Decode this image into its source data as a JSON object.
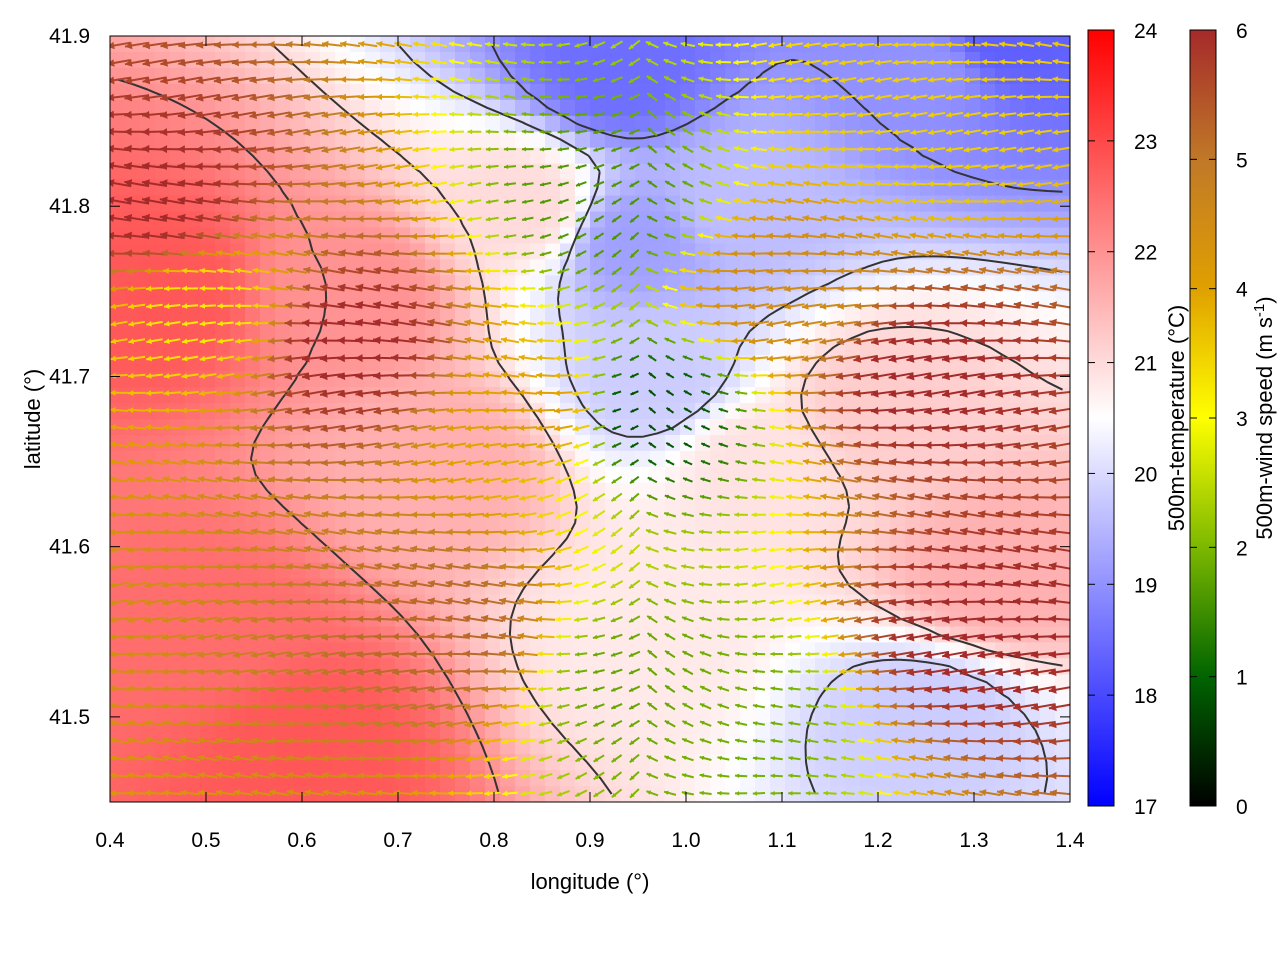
{
  "chart_data": {
    "type": "heatmap",
    "subtype": "temperature field with wind vectors and contour lines",
    "xlabel": "longitude (°)",
    "ylabel": "latitude (°)",
    "xlim": [
      0.4,
      1.4
    ],
    "ylim": [
      41.45,
      41.9
    ],
    "x_ticks": [
      "0.4",
      "0.5",
      "0.6",
      "0.7",
      "0.8",
      "0.9",
      "1.0",
      "1.1",
      "1.2",
      "1.3",
      "1.4"
    ],
    "x_tick_values": [
      0.4,
      0.5,
      0.6,
      0.7,
      0.8,
      0.9,
      1.0,
      1.1,
      1.2,
      1.3,
      1.4
    ],
    "y_ticks": [
      "41.5",
      "41.6",
      "41.7",
      "41.8",
      "41.9"
    ],
    "y_tick_values": [
      41.5,
      41.6,
      41.7,
      41.8,
      41.9
    ],
    "grid": false,
    "temperature_colorbar": {
      "label": "500m-temperature (°C)",
      "range": [
        17,
        24
      ],
      "ticks": [
        "17",
        "18",
        "19",
        "20",
        "21",
        "22",
        "23",
        "24"
      ],
      "tick_values": [
        17,
        18,
        19,
        20,
        21,
        22,
        23,
        24
      ],
      "colors": [
        "#0000ff",
        "#ffffff",
        "#ff0000"
      ]
    },
    "wind_colorbar": {
      "label_main": "500m-wind speed (m s",
      "label_sup": "-1",
      "label_end": ")",
      "range": [
        0,
        6
      ],
      "ticks": [
        "0",
        "1",
        "2",
        "3",
        "4",
        "5",
        "6"
      ],
      "tick_values": [
        0,
        1,
        2,
        3,
        4,
        5,
        6
      ],
      "colors": [
        "#000000",
        "#006400",
        "#7cb800",
        "#ffff00",
        "#e0a000",
        "#c07828",
        "#a52a2a"
      ]
    },
    "temperature_field_approx": [
      {
        "x": 0.45,
        "y": 41.75,
        "t": 22.8
      },
      {
        "x": 0.5,
        "y": 41.55,
        "t": 22.5
      },
      {
        "x": 0.65,
        "y": 41.75,
        "t": 22.0
      },
      {
        "x": 0.75,
        "y": 41.65,
        "t": 21.6
      },
      {
        "x": 0.83,
        "y": 41.8,
        "t": 21.0
      },
      {
        "x": 0.93,
        "y": 41.88,
        "t": 18.5
      },
      {
        "x": 0.95,
        "y": 41.78,
        "t": 19.2
      },
      {
        "x": 0.97,
        "y": 41.7,
        "t": 19.8
      },
      {
        "x": 0.95,
        "y": 41.55,
        "t": 20.8
      },
      {
        "x": 1.05,
        "y": 41.8,
        "t": 19.6
      },
      {
        "x": 1.08,
        "y": 41.65,
        "t": 20.9
      },
      {
        "x": 1.25,
        "y": 41.88,
        "t": 19.0
      },
      {
        "x": 1.33,
        "y": 41.9,
        "t": 18.3
      },
      {
        "x": 1.2,
        "y": 41.68,
        "t": 21.2
      },
      {
        "x": 1.25,
        "y": 41.5,
        "t": 19.8
      },
      {
        "x": 1.32,
        "y": 41.58,
        "t": 21.6
      },
      {
        "x": 0.6,
        "y": 41.48,
        "t": 22.8
      }
    ],
    "wind_speed_field_approx": [
      {
        "x": 0.45,
        "y": 41.8,
        "s": 6.0
      },
      {
        "x": 0.5,
        "y": 41.74,
        "s": 3.2
      },
      {
        "x": 0.65,
        "y": 41.72,
        "s": 6.0
      },
      {
        "x": 0.75,
        "y": 41.55,
        "s": 5.2
      },
      {
        "x": 0.85,
        "y": 41.68,
        "s": 4.0
      },
      {
        "x": 0.92,
        "y": 41.8,
        "s": 1.6
      },
      {
        "x": 0.96,
        "y": 41.68,
        "s": 0.8
      },
      {
        "x": 0.95,
        "y": 41.52,
        "s": 1.8
      },
      {
        "x": 1.05,
        "y": 41.5,
        "s": 1.9
      },
      {
        "x": 1.1,
        "y": 41.75,
        "s": 4.5
      },
      {
        "x": 1.25,
        "y": 41.7,
        "s": 6.0
      },
      {
        "x": 1.25,
        "y": 41.84,
        "s": 3.5
      },
      {
        "x": 1.3,
        "y": 41.55,
        "s": 6.0
      }
    ],
    "wind_direction_note": "westward flow on both flanks, converging toward a low-wind band near 0.95° longitude"
  }
}
